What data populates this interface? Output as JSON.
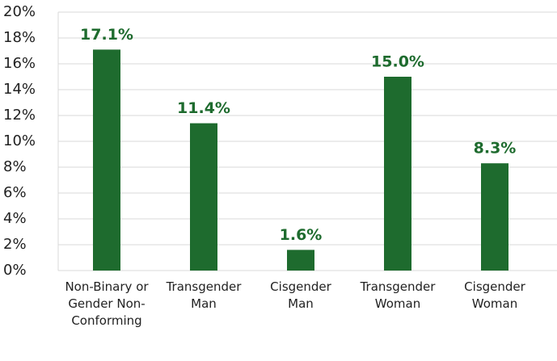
{
  "chart_data": {
    "type": "bar",
    "categories": [
      "Non-Binary or Gender Non-Conforming",
      "Transgender Man",
      "Cisgender Man",
      "Transgender Woman",
      "Cisgender Woman"
    ],
    "values": [
      17.1,
      11.4,
      1.6,
      15.0,
      8.3
    ],
    "value_labels": [
      "17.1%",
      "11.4%",
      "1.6%",
      "15.0%",
      "8.3%"
    ],
    "color": "#1e6b2e",
    "ylim": [
      0,
      20
    ],
    "yticks": [
      {
        "value": 0,
        "label": "0%"
      },
      {
        "value": 2,
        "label": "2%"
      },
      {
        "value": 4,
        "label": "4%"
      },
      {
        "value": 6,
        "label": "6%"
      },
      {
        "value": 8,
        "label": "8%"
      },
      {
        "value": 10,
        "label": "10%"
      },
      {
        "value": 12,
        "label": "12%"
      },
      {
        "value": 14,
        "label": "14%"
      },
      {
        "value": 16,
        "label": "16%"
      },
      {
        "value": 18,
        "label": "18%"
      },
      {
        "value": 20,
        "label": "20%"
      }
    ],
    "grid": true
  }
}
